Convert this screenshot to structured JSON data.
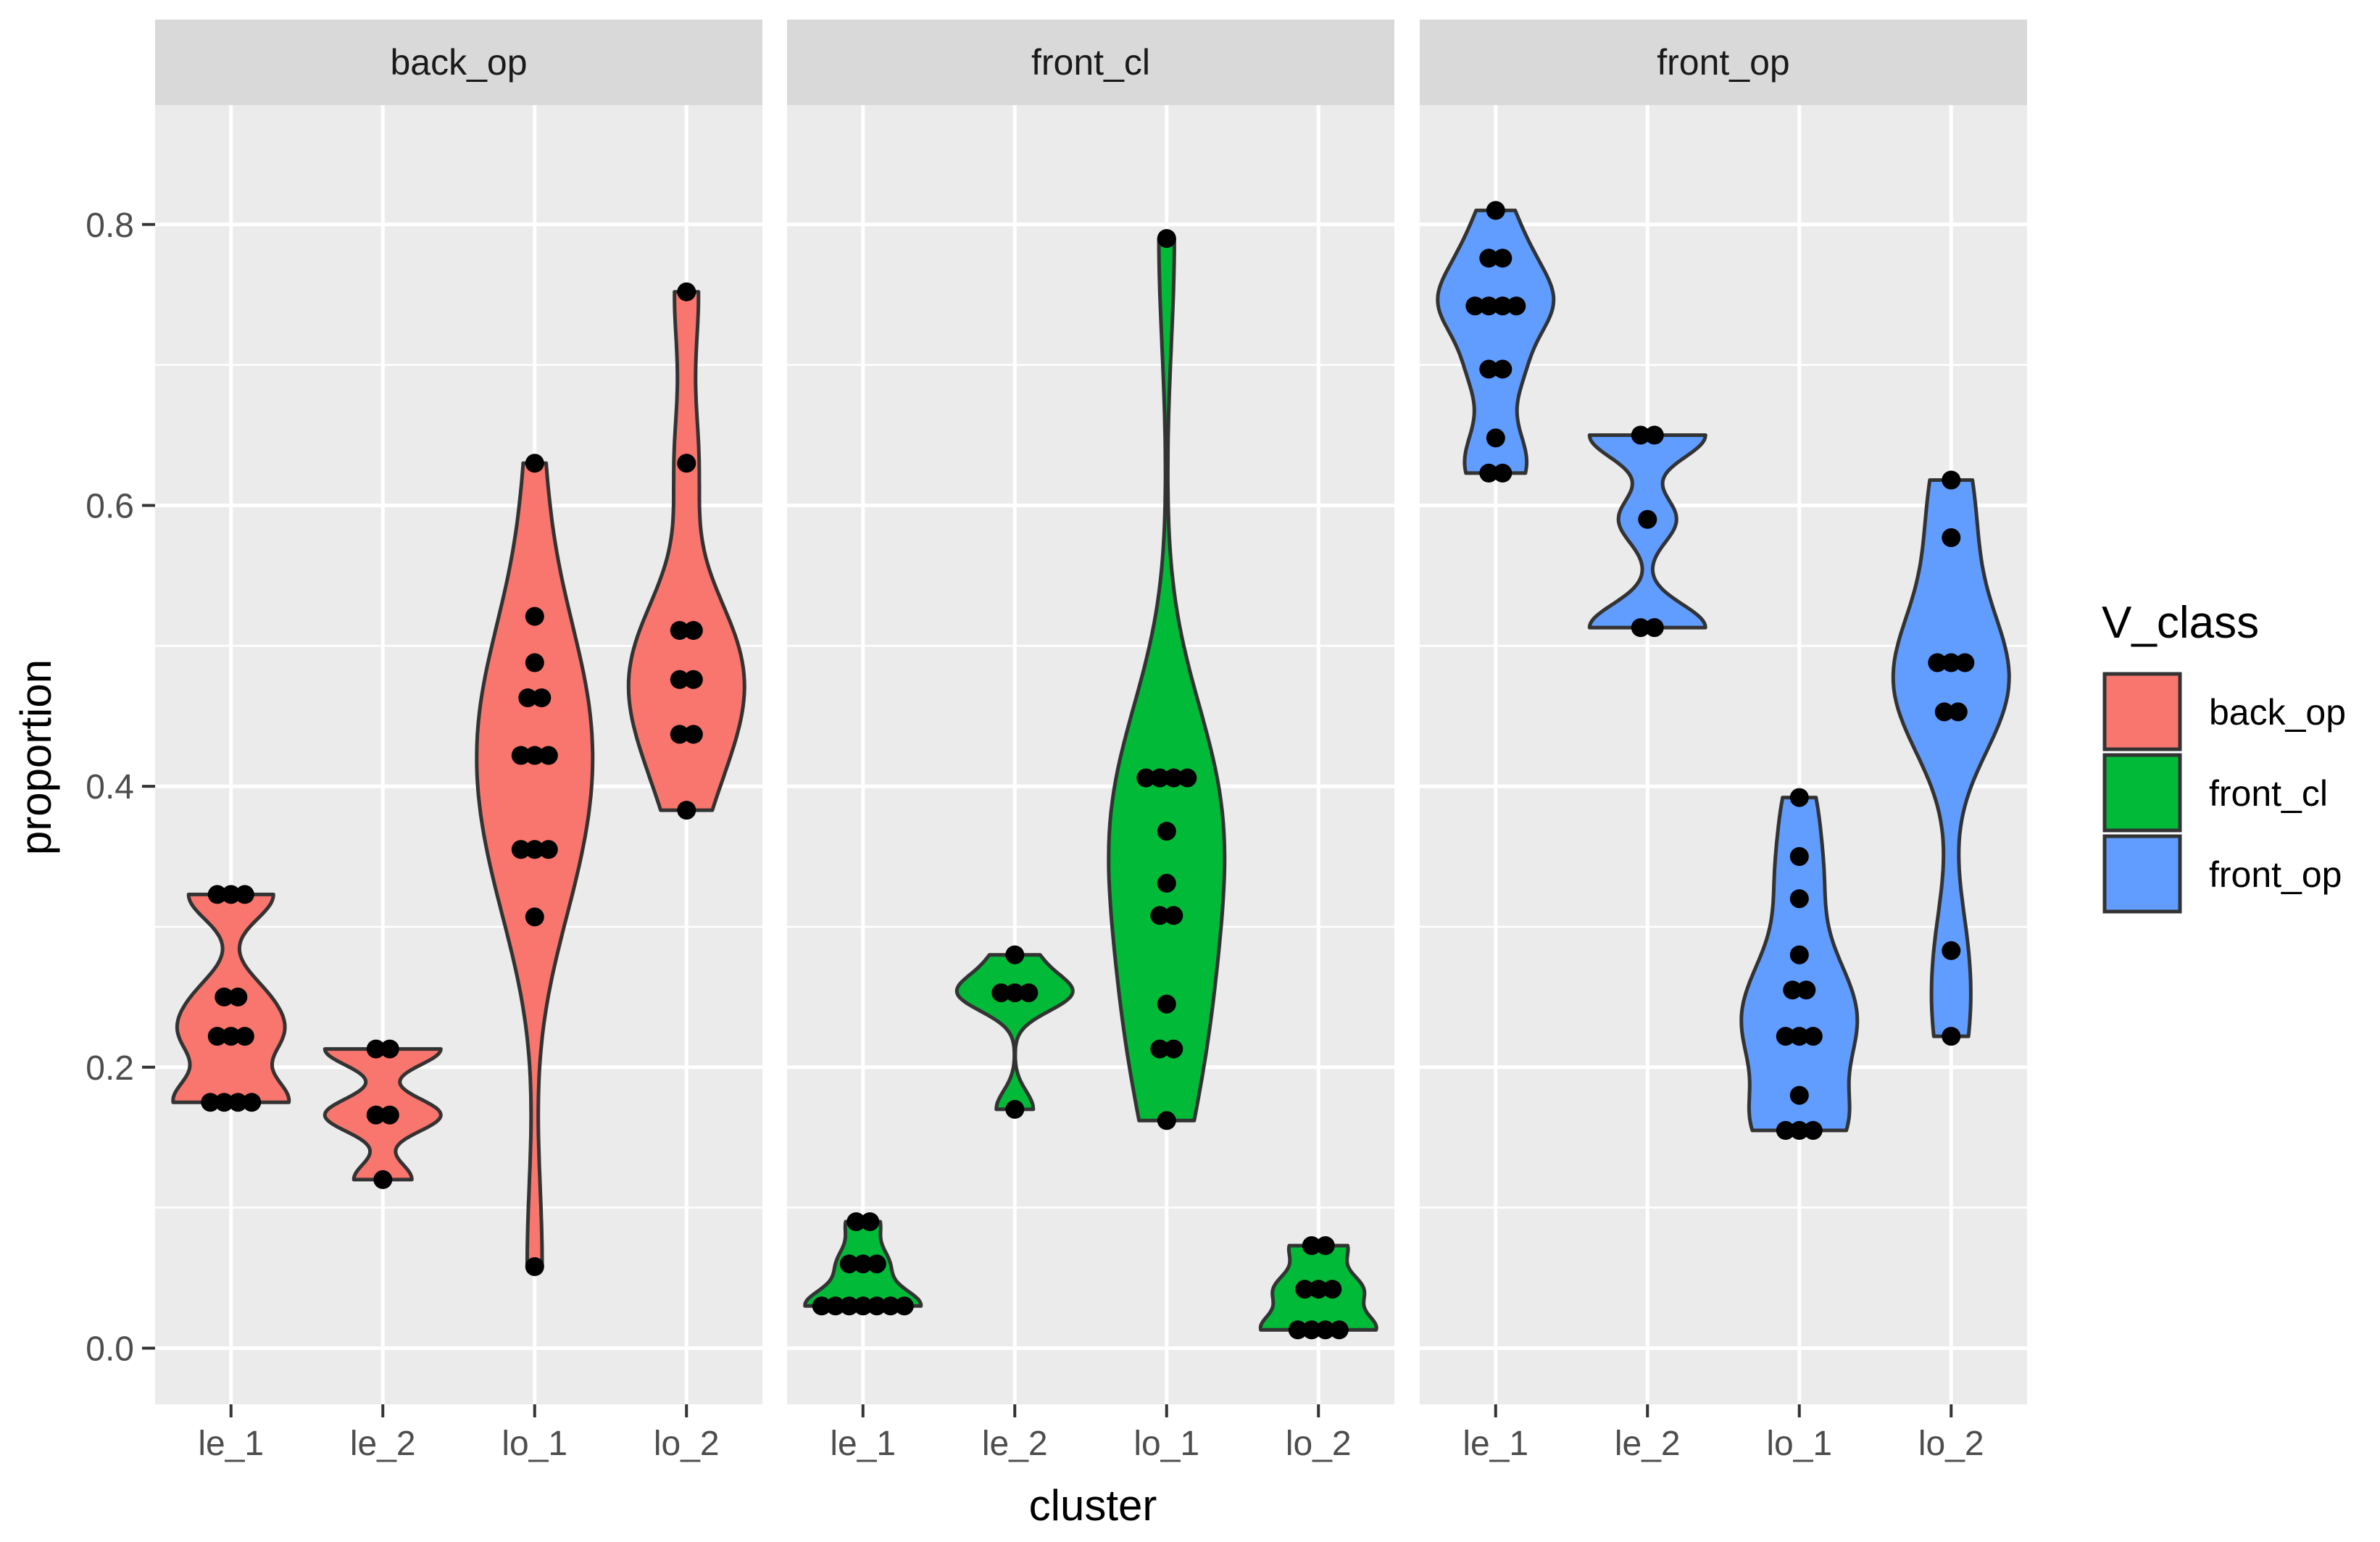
{
  "chart_data": {
    "type": "violin",
    "title": "",
    "xlabel": "cluster",
    "ylabel": "proportion",
    "ylim": [
      -0.04,
      0.885
    ],
    "y_ticks": [
      0.0,
      0.2,
      0.4,
      0.6,
      0.8
    ],
    "y_tick_labels": [
      "0.0",
      "0.2",
      "0.4",
      "0.6",
      "0.8"
    ],
    "categories": [
      "le_1",
      "le_2",
      "lo_1",
      "lo_2"
    ],
    "grid": true,
    "legend": {
      "title": "V_class",
      "position": "right",
      "entries": [
        {
          "label": "back_op",
          "color": "#F8766D"
        },
        {
          "label": "front_cl",
          "color": "#00BA38"
        },
        {
          "label": "front_op",
          "color": "#619CFF"
        }
      ]
    },
    "facets": [
      {
        "label": "back_op",
        "color": "#F8766D",
        "groups": [
          {
            "cluster": "le_1",
            "points": [
              0.323,
              0.323,
              0.323,
              0.25,
              0.25,
              0.222,
              0.222,
              0.222,
              0.175,
              0.175,
              0.175,
              0.175
            ]
          },
          {
            "cluster": "le_2",
            "points": [
              0.213,
              0.213,
              0.166,
              0.166,
              0.12
            ]
          },
          {
            "cluster": "lo_1",
            "points": [
              0.63,
              0.521,
              0.488,
              0.463,
              0.463,
              0.422,
              0.422,
              0.422,
              0.355,
              0.355,
              0.355,
              0.307,
              0.058
            ]
          },
          {
            "cluster": "lo_2",
            "points": [
              0.752,
              0.63,
              0.511,
              0.511,
              0.476,
              0.476,
              0.437,
              0.437,
              0.383
            ]
          }
        ]
      },
      {
        "label": "front_cl",
        "color": "#00BA38",
        "groups": [
          {
            "cluster": "le_1",
            "points": [
              0.09,
              0.09,
              0.06,
              0.06,
              0.06,
              0.03,
              0.03,
              0.03,
              0.03,
              0.03,
              0.03,
              0.03
            ]
          },
          {
            "cluster": "le_2",
            "points": [
              0.28,
              0.253,
              0.253,
              0.253,
              0.17
            ]
          },
          {
            "cluster": "lo_1",
            "points": [
              0.79,
              0.406,
              0.406,
              0.406,
              0.406,
              0.368,
              0.331,
              0.308,
              0.308,
              0.245,
              0.213,
              0.213,
              0.162
            ]
          },
          {
            "cluster": "lo_2",
            "points": [
              0.073,
              0.073,
              0.042,
              0.042,
              0.042,
              0.013,
              0.013,
              0.013,
              0.013
            ]
          }
        ]
      },
      {
        "label": "front_op",
        "color": "#619CFF",
        "groups": [
          {
            "cluster": "le_1",
            "points": [
              0.81,
              0.776,
              0.776,
              0.742,
              0.742,
              0.742,
              0.742,
              0.697,
              0.697,
              0.648,
              0.623,
              0.623
            ]
          },
          {
            "cluster": "le_2",
            "points": [
              0.65,
              0.65,
              0.59,
              0.513,
              0.513
            ]
          },
          {
            "cluster": "lo_1",
            "points": [
              0.392,
              0.35,
              0.32,
              0.28,
              0.255,
              0.255,
              0.222,
              0.222,
              0.222,
              0.18,
              0.155,
              0.155,
              0.155
            ]
          },
          {
            "cluster": "lo_2",
            "points": [
              0.618,
              0.577,
              0.488,
              0.488,
              0.488,
              0.453,
              0.453,
              0.283,
              0.222
            ]
          }
        ]
      }
    ]
  }
}
